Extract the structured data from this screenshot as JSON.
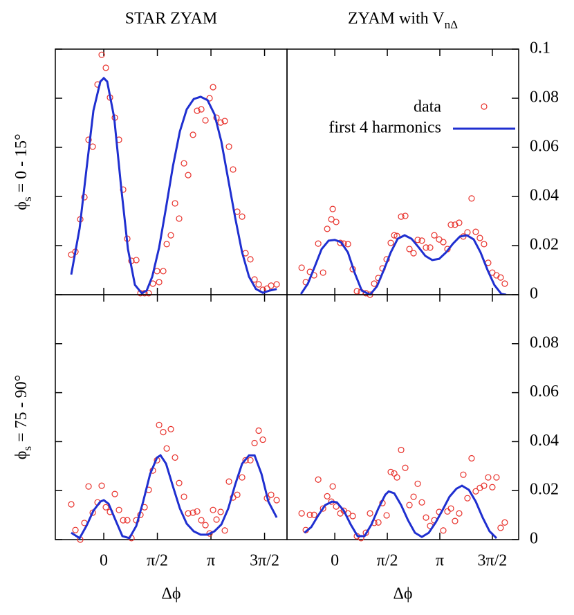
{
  "chart_data": [
    {
      "type": "scatter",
      "title": {
        "text": "STAR ZYAM"
      },
      "ylabel": {
        "text": "ϕ",
        "subscript": "s",
        "suffix": " = 0 - 15°"
      },
      "xlim": [
        -1.42,
        5.37
      ],
      "ylim": [
        0,
        0.1
      ],
      "series": [
        {
          "kind": "points",
          "color": "#e8302a",
          "x": [
            -0.953,
            -0.831,
            -0.689,
            -0.568,
            -0.446,
            -0.324,
            -0.182,
            -0.061,
            0.061,
            0.182,
            0.324,
            0.446,
            0.568,
            0.689,
            0.811,
            0.953,
            1.074,
            1.196,
            1.318,
            1.439,
            1.561,
            1.622,
            1.743,
            1.845,
            1.966,
            2.088,
            2.209,
            2.351,
            2.473,
            2.615,
            2.736,
            2.858,
            2.98,
            3.101,
            3.203,
            3.304,
            3.425,
            3.547,
            3.669,
            3.79,
            3.912,
            4.054,
            4.155,
            4.297,
            4.419,
            4.54,
            4.662,
            4.784,
            4.905,
            5.067
          ],
          "values": [
            0.0163,
            0.0175,
            0.0307,
            0.0397,
            0.0631,
            0.0603,
            0.0856,
            0.0977,
            0.0924,
            0.0803,
            0.0721,
            0.0631,
            0.0428,
            0.0228,
            0.0138,
            0.0141,
            0.0006,
            0.0006,
            0.0006,
            0.0045,
            0.0096,
            0.0051,
            0.0096,
            0.0206,
            0.0242,
            0.0372,
            0.031,
            0.0535,
            0.0487,
            0.0651,
            0.0749,
            0.0755,
            0.071,
            0.08,
            0.0845,
            0.0721,
            0.0701,
            0.0707,
            0.0603,
            0.051,
            0.0338,
            0.0318,
            0.0169,
            0.0144,
            0.0062,
            0.0042,
            0.002,
            0.0025,
            0.0037,
            0.0042
          ]
        },
        {
          "kind": "line",
          "color": "#1f2fd0",
          "x": [
            -0.953,
            -0.709,
            -0.507,
            -0.304,
            -0.101,
            0,
            0.101,
            0.304,
            0.507,
            0.709,
            0.912,
            1.115,
            1.257,
            1.419,
            1.622,
            1.824,
            2.027,
            2.23,
            2.432,
            2.635,
            2.838,
            3.041,
            3.243,
            3.446,
            3.649,
            3.851,
            4.054,
            4.257,
            4.459,
            4.662,
            4.865,
            5.067
          ],
          "values": [
            0.0082,
            0.027,
            0.051,
            0.075,
            0.0868,
            0.0882,
            0.0868,
            0.0721,
            0.044,
            0.0186,
            0.004,
            0.0006,
            0.0017,
            0.0073,
            0.0192,
            0.0355,
            0.0524,
            0.0665,
            0.0755,
            0.0797,
            0.0806,
            0.0792,
            0.0735,
            0.0623,
            0.0468,
            0.0313,
            0.0172,
            0.0073,
            0.0023,
            0.0008,
            0.0017,
            0.0023
          ]
        }
      ]
    },
    {
      "type": "scatter",
      "title": {
        "text": "ZYAM with V",
        "subscript": "nΔ"
      },
      "xlim": [
        -1.43,
        5.5
      ],
      "ylim": [
        0,
        0.1
      ],
      "yticks": [
        0,
        0.02,
        0.04,
        0.06,
        0.08,
        0.1
      ],
      "legend": "top right",
      "series": [
        {
          "name": "data",
          "kind": "points",
          "color": "#e8302a",
          "x": [
            -0.992,
            -0.868,
            -0.744,
            -0.62,
            -0.496,
            -0.351,
            -0.227,
            -0.103,
            -0.062,
            0.041,
            0.165,
            0.269,
            0.393,
            0.537,
            0.661,
            0.785,
            0.93,
            1.054,
            1.178,
            1.302,
            1.426,
            1.55,
            1.674,
            1.778,
            1.86,
            1.984,
            2.108,
            2.232,
            2.356,
            2.48,
            2.604,
            2.728,
            2.852,
            2.976,
            3.121,
            3.245,
            3.369,
            3.473,
            3.596,
            3.72,
            3.844,
            3.968,
            4.092,
            4.216,
            4.34,
            4.464,
            4.588,
            4.712,
            4.836,
            4.96,
            5.084
          ],
          "values": [
            0.011,
            0.0051,
            0.0093,
            0.0079,
            0.0208,
            0.009,
            0.0268,
            0.0307,
            0.0349,
            0.0296,
            0.0211,
            0.0208,
            0.0206,
            0.0104,
            0.0014,
            0.0011,
            0.0006,
            0,
            0.0045,
            0.0068,
            0.0107,
            0.0144,
            0.0211,
            0.0242,
            0.0239,
            0.0318,
            0.0321,
            0.0186,
            0.0169,
            0.0223,
            0.022,
            0.0192,
            0.0192,
            0.0242,
            0.0225,
            0.0214,
            0.0186,
            0.0285,
            0.0285,
            0.0293,
            0.0237,
            0.0254,
            0.0392,
            0.0256,
            0.0231,
            0.0206,
            0.013,
            0.009,
            0.0079,
            0.007,
            0.0045
          ]
        },
        {
          "name": "first 4 harmonics",
          "kind": "line",
          "color": "#1f2fd0",
          "x": [
            -1.013,
            -0.806,
            -0.599,
            -0.393,
            -0.186,
            0,
            0.186,
            0.393,
            0.599,
            0.806,
            1.054,
            1.261,
            1.468,
            1.674,
            1.881,
            2.088,
            2.294,
            2.501,
            2.708,
            2.914,
            3.121,
            3.328,
            3.535,
            3.741,
            3.948,
            4.155,
            4.361,
            4.568,
            4.775,
            4.982,
            5.126
          ],
          "values": [
            0.0003,
            0.0045,
            0.0115,
            0.0186,
            0.022,
            0.0223,
            0.0214,
            0.0172,
            0.0087,
            0.0017,
            0,
            0.0034,
            0.0101,
            0.0172,
            0.0228,
            0.0242,
            0.0228,
            0.0194,
            0.0158,
            0.0141,
            0.0146,
            0.0172,
            0.0208,
            0.0237,
            0.0242,
            0.0225,
            0.0172,
            0.0101,
            0.0039,
            0.0003,
            0
          ]
        }
      ]
    },
    {
      "type": "scatter",
      "ylabel": {
        "text": "ϕ",
        "subscript": "s",
        "suffix": " = 75 - 90°"
      },
      "xlabel": "Δϕ",
      "xlim": [
        -1.42,
        5.37
      ],
      "ylim": [
        0,
        0.1
      ],
      "xticks": [
        0,
        {
          "value": 1.5708,
          "label": "π/2"
        },
        {
          "value": 3.1416,
          "label": "π"
        },
        {
          "value": 4.7124,
          "label": "3π/2"
        }
      ],
      "series": [
        {
          "kind": "points",
          "color": "#e8302a",
          "x": [
            -0.953,
            -0.831,
            -0.689,
            -0.568,
            -0.446,
            -0.324,
            -0.182,
            -0.061,
            0.061,
            0.182,
            0.324,
            0.446,
            0.568,
            0.689,
            0.811,
            0.953,
            1.074,
            1.196,
            1.318,
            1.439,
            1.561,
            1.622,
            1.743,
            1.845,
            1.966,
            2.088,
            2.209,
            2.351,
            2.473,
            2.615,
            2.736,
            2.858,
            2.98,
            3.101,
            3.203,
            3.304,
            3.425,
            3.547,
            3.669,
            3.79,
            3.912,
            4.054,
            4.155,
            4.297,
            4.419,
            4.54,
            4.662,
            4.784,
            4.905,
            5.067
          ],
          "values": [
            0.0144,
            0.0039,
            0,
            0.0068,
            0.0217,
            0.011,
            0.0152,
            0.022,
            0.0132,
            0.0113,
            0.0186,
            0.0121,
            0.0079,
            0.0079,
            0.0006,
            0.0079,
            0.0101,
            0.0132,
            0.0203,
            0.0282,
            0.0324,
            0.0468,
            0.0439,
            0.0372,
            0.0451,
            0.0335,
            0.0231,
            0.0175,
            0.0107,
            0.011,
            0.0115,
            0.0079,
            0.0059,
            0.0025,
            0.0121,
            0.0082,
            0.0113,
            0.0037,
            0.0237,
            0.0172,
            0.0183,
            0.0254,
            0.0324,
            0.0324,
            0.0394,
            0.0445,
            0.0408,
            0.0169,
            0.0183,
            0.0161
          ]
        },
        {
          "kind": "line",
          "color": "#1f2fd0",
          "x": [
            -0.953,
            -0.709,
            -0.507,
            -0.304,
            -0.101,
            0,
            0.142,
            0.345,
            0.547,
            0.75,
            0.953,
            1.155,
            1.358,
            1.561,
            1.662,
            1.824,
            2.027,
            2.23,
            2.432,
            2.635,
            2.838,
            3.041,
            3.243,
            3.446,
            3.649,
            3.851,
            4.054,
            4.257,
            4.419,
            4.622,
            4.824,
            5.067
          ],
          "values": [
            0.0028,
            0.0006,
            0.0056,
            0.0118,
            0.0155,
            0.0161,
            0.0146,
            0.0079,
            0.0014,
            0.0006,
            0.0056,
            0.0155,
            0.0268,
            0.0335,
            0.0344,
            0.031,
            0.0217,
            0.0127,
            0.0065,
            0.0034,
            0.002,
            0.002,
            0.0034,
            0.0062,
            0.0127,
            0.0225,
            0.031,
            0.0344,
            0.0344,
            0.0268,
            0.0155,
            0.009
          ]
        }
      ]
    },
    {
      "type": "scatter",
      "xlabel": "Δϕ",
      "xlim": [
        -1.43,
        5.5
      ],
      "ylim": [
        0,
        0.1
      ],
      "xticks": [
        0,
        {
          "value": 1.5708,
          "label": "π/2"
        },
        {
          "value": 3.1416,
          "label": "π"
        },
        {
          "value": 4.7124,
          "label": "3π/2"
        }
      ],
      "yticks": [
        0,
        0.02,
        0.04,
        0.06,
        0.08
      ],
      "series": [
        {
          "kind": "points",
          "color": "#e8302a",
          "x": [
            -0.992,
            -0.868,
            -0.744,
            -0.62,
            -0.496,
            -0.351,
            -0.227,
            -0.103,
            -0.062,
            0.041,
            0.165,
            0.269,
            0.393,
            0.537,
            0.661,
            0.785,
            0.93,
            1.054,
            1.178,
            1.302,
            1.426,
            1.55,
            1.674,
            1.778,
            1.86,
            1.984,
            2.108,
            2.232,
            2.356,
            2.48,
            2.604,
            2.728,
            2.852,
            2.976,
            3.121,
            3.245,
            3.369,
            3.473,
            3.596,
            3.72,
            3.844,
            3.968,
            4.092,
            4.216,
            4.34,
            4.464,
            4.588,
            4.712,
            4.836,
            4.96,
            5.084
          ],
          "values": [
            0.0107,
            0.0039,
            0.0101,
            0.0101,
            0.0245,
            0.0127,
            0.0177,
            0.0155,
            0.0217,
            0.0135,
            0.0107,
            0.0118,
            0.0107,
            0.0096,
            0.0014,
            0.0006,
            0.0028,
            0.0107,
            0.0068,
            0.007,
            0.0149,
            0.0099,
            0.0276,
            0.027,
            0.0254,
            0.0366,
            0.0293,
            0.0141,
            0.0175,
            0.0228,
            0.0152,
            0.009,
            0.0056,
            0.0079,
            0.0113,
            0.0037,
            0.0115,
            0.0127,
            0.0076,
            0.0107,
            0.0265,
            0.0169,
            0.0332,
            0.0197,
            0.0211,
            0.022,
            0.0254,
            0.0214,
            0.0254,
            0.0048,
            0.007
          ]
        },
        {
          "kind": "line",
          "color": "#1f2fd0",
          "x": [
            -0.909,
            -0.703,
            -0.496,
            -0.289,
            -0.083,
            0.062,
            0.269,
            0.475,
            0.682,
            0.889,
            1.096,
            1.302,
            1.509,
            1.612,
            1.778,
            1.984,
            2.191,
            2.398,
            2.604,
            2.811,
            3.018,
            3.225,
            3.431,
            3.638,
            3.803,
            4.01,
            4.217,
            4.423,
            4.63,
            4.837
          ],
          "values": [
            0.0028,
            0.0051,
            0.0099,
            0.0141,
            0.0155,
            0.0152,
            0.0118,
            0.0062,
            0.0014,
            0.0014,
            0.0062,
            0.0127,
            0.0183,
            0.0197,
            0.0189,
            0.0141,
            0.0079,
            0.0028,
            0.0011,
            0.0028,
            0.007,
            0.0121,
            0.0175,
            0.0208,
            0.022,
            0.0203,
            0.0155,
            0.009,
            0.0034,
            0.0006
          ]
        }
      ]
    }
  ]
}
